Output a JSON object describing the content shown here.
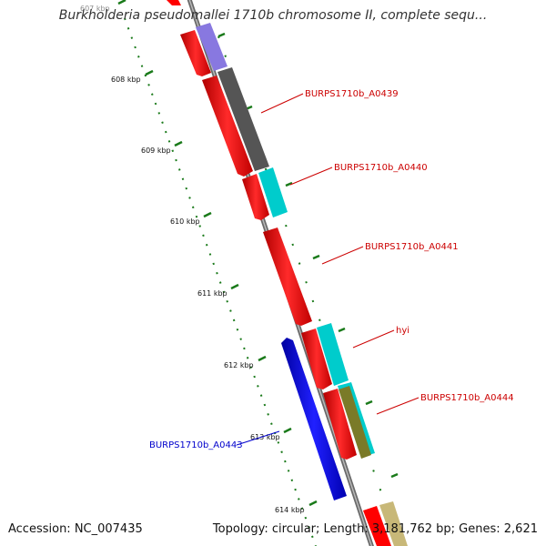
{
  "title": "Burkholderia pseudomallei 1710b chromosome II, complete sequ...",
  "footer": {
    "accession": "Accession: NC_007435",
    "topology": "Topology: circular; Length: 3,181,762 bp; Genes: 2,621"
  },
  "ticks": [
    "607 kbp",
    "608 kbp",
    "609 kbp",
    "610 kbp",
    "611 kbp",
    "612 kbp",
    "613 kbp",
    "614 kbp"
  ],
  "gene_labels": [
    {
      "text": "BURPS1710b_A0439",
      "color": "#cc0000"
    },
    {
      "text": "BURPS1710b_A0440",
      "color": "#cc0000"
    },
    {
      "text": "BURPS1710b_A0441",
      "color": "#cc0000"
    },
    {
      "text": "hyi",
      "color": "#cc0000"
    },
    {
      "text": "BURPS1710b_A0444",
      "color": "#cc0000"
    },
    {
      "text": "BURPS1710b_A0443",
      "color": "#0000cc"
    }
  ],
  "colors": {
    "backbone": "#808080",
    "cds": "#ff0000",
    "reverse_cds": "#0000ff",
    "tick": "#1a7a1a"
  }
}
